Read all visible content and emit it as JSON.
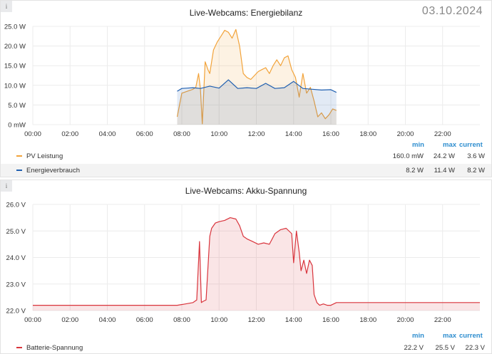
{
  "panels": [
    {
      "title": "Live-Webcams: Energiebilanz",
      "date": "03.10.2024",
      "y_ticks": [
        "25.0 W",
        "20.0 W",
        "15.0 W",
        "10.0 W",
        "5.0 W",
        "0 mW"
      ],
      "x_ticks": [
        "00:00",
        "02:00",
        "04:00",
        "06:00",
        "08:00",
        "10:00",
        "12:00",
        "14:00",
        "16:00",
        "18:00",
        "20:00",
        "22:00"
      ],
      "legend_headers": {
        "min": "min",
        "max": "max",
        "current": "current"
      },
      "legend": [
        {
          "name": "PV Leistung",
          "color": "#f2a33a",
          "min": "160.0 mW",
          "max": "24.2 W",
          "current": "3.6 W"
        },
        {
          "name": "Energieverbrauch",
          "color": "#1f5fb0",
          "min": "8.2 W",
          "max": "11.4 W",
          "current": "8.2 W"
        }
      ]
    },
    {
      "title": "Live-Webcams: Akku-Spannung",
      "y_ticks": [
        "26.0 V",
        "25.0 V",
        "24.0 V",
        "23.0 V",
        "22.0 V"
      ],
      "x_ticks": [
        "00:00",
        "02:00",
        "04:00",
        "06:00",
        "08:00",
        "10:00",
        "12:00",
        "14:00",
        "16:00",
        "18:00",
        "20:00",
        "22:00"
      ],
      "legend_headers": {
        "min": "min",
        "max": "max",
        "current": "current"
      },
      "legend": [
        {
          "name": "Batterie-Spannung",
          "color": "#d9343c",
          "min": "22.2 V",
          "max": "25.5 V",
          "current": "22.3 V"
        }
      ]
    }
  ],
  "chart_data": [
    {
      "type": "line",
      "title": "Live-Webcams: Energiebilanz",
      "x_unit": "hours of 03.10.2024",
      "ylim": [
        0,
        25
      ],
      "y_unit": "W",
      "grid": true,
      "series": [
        {
          "name": "PV Leistung",
          "color": "#f2a33a",
          "x": [
            7.75,
            8.0,
            8.3,
            8.6,
            8.75,
            8.9,
            9.0,
            9.1,
            9.25,
            9.4,
            9.5,
            9.7,
            9.9,
            10.1,
            10.3,
            10.5,
            10.7,
            10.9,
            11.1,
            11.3,
            11.5,
            11.7,
            11.9,
            12.1,
            12.3,
            12.5,
            12.7,
            12.9,
            13.1,
            13.3,
            13.5,
            13.7,
            13.9,
            14.1,
            14.3,
            14.5,
            14.7,
            14.9,
            15.1,
            15.3,
            15.5,
            15.7,
            15.9,
            16.1,
            16.3
          ],
          "y": [
            2.0,
            8.0,
            8.5,
            9.0,
            9.5,
            13.0,
            9.0,
            0.2,
            16.0,
            14.0,
            13.0,
            19.0,
            21.0,
            22.5,
            24.0,
            23.5,
            22.0,
            24.2,
            20.0,
            13.0,
            12.0,
            11.5,
            12.5,
            13.5,
            14.0,
            14.5,
            13.0,
            15.0,
            16.5,
            15.0,
            17.0,
            17.5,
            14.0,
            12.0,
            7.0,
            13.0,
            8.0,
            9.5,
            6.0,
            2.0,
            3.0,
            1.5,
            2.5,
            4.0,
            3.6
          ]
        },
        {
          "name": "Energieverbrauch",
          "color": "#1f5fb0",
          "x": [
            7.75,
            8.0,
            8.3,
            8.6,
            9.0,
            9.5,
            10.0,
            10.5,
            11.0,
            11.5,
            12.0,
            12.5,
            13.0,
            13.5,
            14.0,
            14.5,
            15.0,
            15.5,
            16.0,
            16.3
          ],
          "y": [
            8.5,
            9.2,
            9.3,
            9.4,
            9.2,
            9.8,
            9.3,
            11.4,
            9.2,
            9.4,
            9.2,
            10.5,
            9.2,
            9.4,
            11.0,
            9.2,
            9.0,
            8.8,
            8.9,
            8.2
          ]
        }
      ]
    },
    {
      "type": "area",
      "title": "Live-Webcams: Akku-Spannung",
      "x_unit": "hours of 03.10.2024",
      "ylim": [
        22,
        26
      ],
      "y_unit": "V",
      "grid": true,
      "series": [
        {
          "name": "Batterie-Spannung",
          "color": "#d9343c",
          "x": [
            0,
            7.75,
            8.2,
            8.6,
            8.8,
            8.95,
            9.05,
            9.15,
            9.3,
            9.5,
            9.6,
            9.8,
            10.0,
            10.3,
            10.6,
            10.9,
            11.1,
            11.3,
            11.5,
            11.8,
            12.1,
            12.4,
            12.7,
            13.0,
            13.3,
            13.6,
            13.9,
            14.0,
            14.15,
            14.3,
            14.4,
            14.55,
            14.7,
            14.85,
            15.0,
            15.1,
            15.25,
            15.4,
            15.6,
            15.8,
            16.0,
            16.3,
            24
          ],
          "y": [
            22.2,
            22.2,
            22.25,
            22.3,
            22.4,
            24.6,
            22.3,
            22.35,
            22.4,
            24.8,
            25.1,
            25.3,
            25.35,
            25.4,
            25.5,
            25.45,
            25.2,
            24.8,
            24.7,
            24.6,
            24.5,
            24.55,
            24.5,
            24.9,
            25.05,
            25.1,
            24.9,
            23.8,
            25.0,
            24.2,
            23.5,
            23.9,
            23.4,
            23.9,
            23.7,
            22.6,
            22.3,
            22.2,
            22.25,
            22.2,
            22.2,
            22.3,
            22.3
          ]
        }
      ]
    }
  ]
}
